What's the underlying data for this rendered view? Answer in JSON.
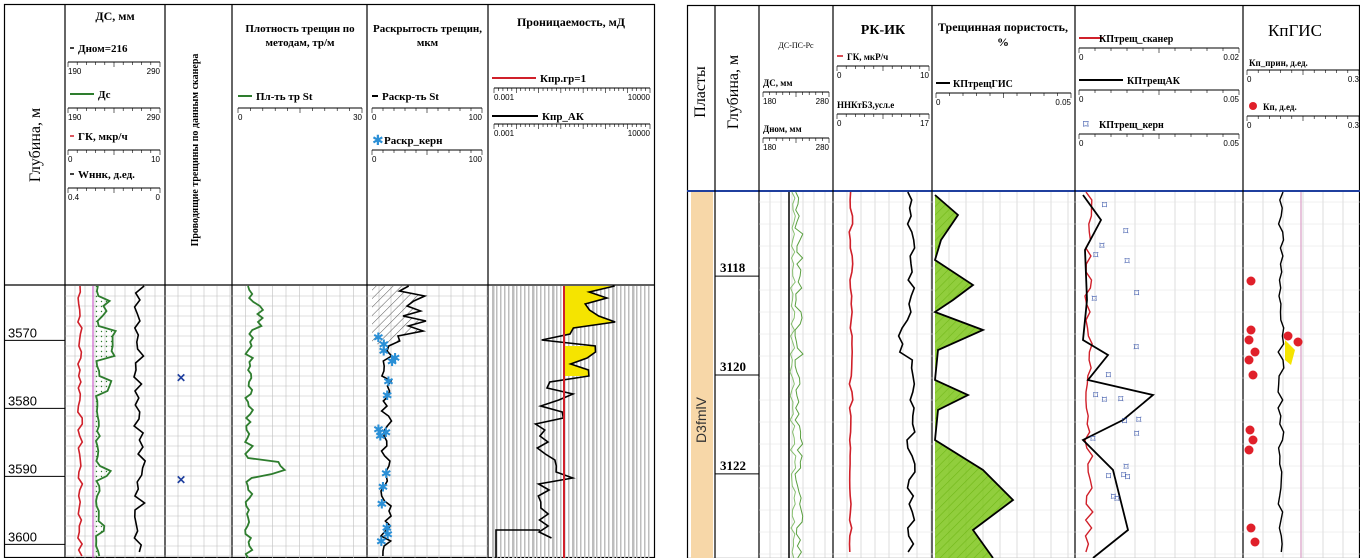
{
  "left": {
    "depth_header": "Глубина, м",
    "depth_ticks": [
      "3570",
      "3580",
      "3590",
      "3600"
    ],
    "caliper": {
      "title": "ДС, мм",
      "curves": [
        {
          "label": "Дном=216",
          "min": "190",
          "max": "290",
          "color": "#000000"
        },
        {
          "label": "Дс",
          "min": "190",
          "max": "290",
          "color": "#2e7d2e"
        },
        {
          "label": "ГК, мкр/ч",
          "min": "0",
          "max": "10",
          "color": "#d0202a"
        },
        {
          "label": "Wннк, д.ед.",
          "min": "0.4",
          "max": "0",
          "color": "#000000"
        }
      ]
    },
    "scanner": {
      "title": "Проводящие трещины по данным сканера"
    },
    "density": {
      "title": "Плотность трещин по методам, тр/м",
      "curve": "Пл-ть тр St",
      "min": "0",
      "max": "30"
    },
    "aperture": {
      "title": "Раскрытость трещин, мкм",
      "curves": [
        {
          "label": "Раскр-ть St",
          "min": "0",
          "max": "100"
        },
        {
          "label": "Раскр_керн",
          "min": "0",
          "max": "100"
        }
      ]
    },
    "permeability": {
      "title": "Проницаемость, мД",
      "curves": [
        {
          "label": "Кпр.гр=1",
          "min": "0.001",
          "max": "10000",
          "color": "#d0202a"
        },
        {
          "label": "Кпр_АК",
          "min": "0.001",
          "max": "10000",
          "color": "#000000"
        }
      ]
    }
  },
  "right": {
    "strata_header": "Пласты",
    "depth_header": "Глубина, м",
    "depth_ticks": [
      "3118",
      "3120",
      "3122"
    ],
    "formation": "D3fmlV",
    "col_ds": {
      "title": "ДС-ПС-Рс",
      "curves": [
        {
          "label": "ДС, мм",
          "min": "180",
          "max": "280"
        },
        {
          "label": "Дном, мм",
          "min": "180",
          "max": "280"
        }
      ]
    },
    "col_rk": {
      "title": "РК-ИК",
      "curves": [
        {
          "label": "ГК, мкР/ч",
          "min": "0",
          "max": "10"
        },
        {
          "label": "ННКтБЗ,усл.е",
          "min": "0",
          "max": "17"
        }
      ]
    },
    "col_por": {
      "title": "Трещинная пористость, %",
      "curve": "КПтрещГИС",
      "min": "0",
      "max": "0.05"
    },
    "col_kp": {
      "curves": [
        {
          "label": "КПтрещ_сканер",
          "min": "0",
          "max": "0.02",
          "color": "#d0202a"
        },
        {
          "label": "КПтрещАК",
          "min": "0",
          "max": "0.05",
          "color": "#000000"
        },
        {
          "label": "КПтрещ_керн",
          "min": "0",
          "max": "0.05",
          "color": "#1f3f9e"
        }
      ]
    },
    "col_kpgis": {
      "title": "КпГИС",
      "curves": [
        {
          "label": "Кп_прин, д.ед.",
          "min": "0",
          "max": "0.3"
        },
        {
          "label": "Кп, д.ед.",
          "min": "0",
          "max": "0.3"
        }
      ]
    }
  },
  "chart_data": [
    {
      "type": "line",
      "description": "Well log panel (left)",
      "y_axis": {
        "label": "Глубина, м",
        "range": [
          3562,
          3602
        ],
        "ticks": [
          3570,
          3580,
          3590,
          3600
        ]
      },
      "scanner_conductive_fractures_depth": [
        3575.5,
        3590.5
      ],
      "core_aperture_points_depth": [
        3569.5,
        3570.5,
        3571.5,
        3572.5,
        3573,
        3576,
        3578,
        3583,
        3583.5,
        3584,
        3589.5,
        3591.5,
        3594,
        3597.5,
        3598.5,
        3599.5
      ],
      "permeability_cutoff": 1
    },
    {
      "type": "line",
      "description": "Well log panel (right)",
      "y_axis": {
        "label": "Глубина, м",
        "range": [
          3116.3,
          3123.7
        ],
        "ticks": [
          3118,
          3120,
          3122
        ]
      },
      "formation": "D3fmlV"
    }
  ]
}
